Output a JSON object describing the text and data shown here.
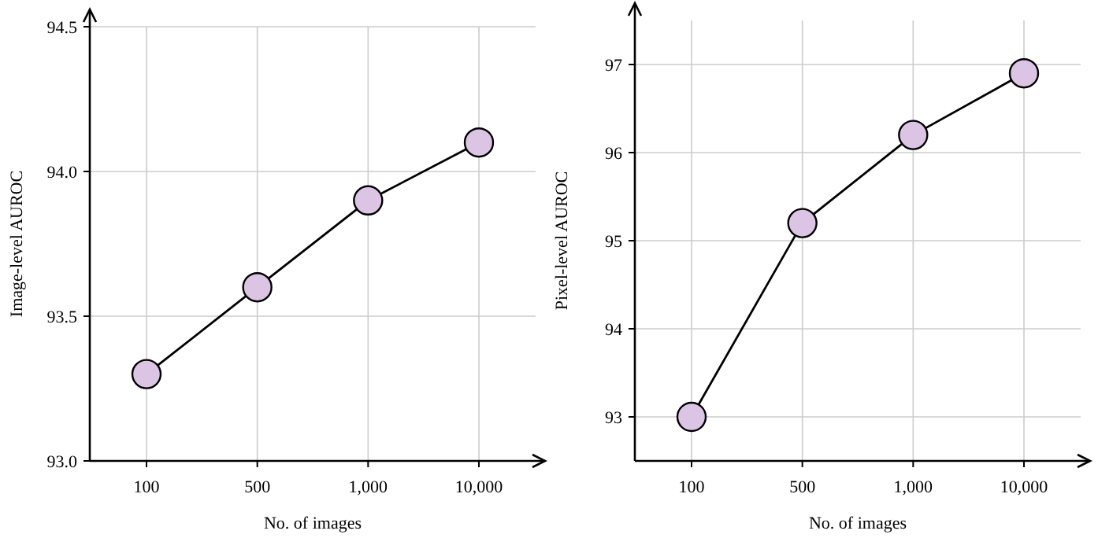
{
  "chart_data": [
    {
      "type": "line",
      "xlabel": "No. of images",
      "ylabel": "Image-level AUROC",
      "categories": [
        "100",
        "500",
        "1,000",
        "10,000"
      ],
      "series": [
        {
          "color": "#dcc4e4",
          "values": [
            93.3,
            93.6,
            93.9,
            94.1
          ]
        }
      ],
      "ylim": [
        93.0,
        94.5
      ],
      "yticks": [
        {
          "value": 93.0,
          "label": "93.0"
        },
        {
          "value": 93.5,
          "label": "93.5"
        },
        {
          "value": 94.0,
          "label": "94.0"
        },
        {
          "value": 94.5,
          "label": "94.5"
        }
      ],
      "grid": true,
      "marker": "circle",
      "line_style": "solid"
    },
    {
      "type": "line",
      "xlabel": "No. of images",
      "ylabel": "Pixel-level AUROC",
      "categories": [
        "100",
        "500",
        "1,000",
        "10,000"
      ],
      "series": [
        {
          "color": "#dcc4e4",
          "values": [
            93,
            95.2,
            96.2,
            96.9
          ]
        }
      ],
      "ylim": [
        92.5,
        97.5
      ],
      "yticks": [
        93,
        94,
        95,
        96,
        97
      ],
      "grid": true,
      "marker": "circle",
      "line_style": "solid"
    }
  ]
}
